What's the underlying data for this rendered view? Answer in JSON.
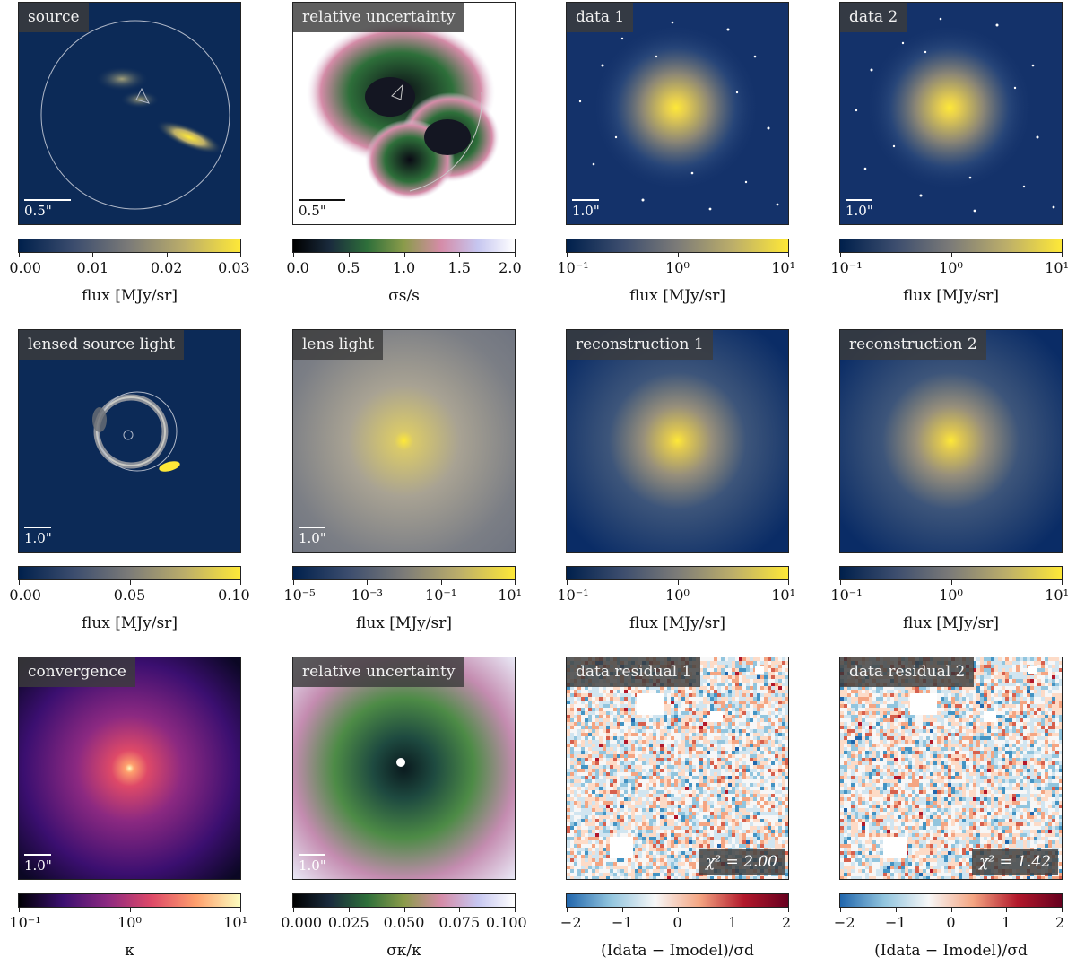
{
  "panels": [
    {
      "id": "source",
      "label": "source",
      "scale": "0.5\"",
      "cbar_ticks": [
        "0.00",
        "0.01",
        "0.02",
        "0.03"
      ],
      "cbar_label": "flux [MJy/sr]",
      "cmap": "cividis"
    },
    {
      "id": "rel-unc-source",
      "label": "relative uncertainty",
      "scale": "0.5\"",
      "cbar_ticks": [
        "0.0",
        "0.5",
        "1.0",
        "1.5",
        "2.0"
      ],
      "cbar_label": "σs/s",
      "cmap": "cubehelix"
    },
    {
      "id": "data-1",
      "label": "data 1",
      "scale": "1.0\"",
      "cbar_ticks": [
        "10⁻¹",
        "10⁰",
        "10¹"
      ],
      "cbar_label": "flux [MJy/sr]",
      "cmap": "cividis"
    },
    {
      "id": "data-2",
      "label": "data 2",
      "scale": "1.0\"",
      "cbar_ticks": [
        "10⁻¹",
        "10⁰",
        "10¹"
      ],
      "cbar_label": "flux [MJy/sr]",
      "cmap": "cividis"
    },
    {
      "id": "lensed-source",
      "label": "lensed source light",
      "scale": "1.0\"",
      "cbar_ticks": [
        "0.00",
        "0.05",
        "0.10"
      ],
      "cbar_label": "flux [MJy/sr]",
      "cmap": "cividis"
    },
    {
      "id": "lens-light",
      "label": "lens light",
      "scale": "1.0\"",
      "cbar_ticks": [
        "10⁻⁵",
        "10⁻³",
        "10⁻¹",
        "10¹"
      ],
      "cbar_label": "flux [MJy/sr]",
      "cmap": "cividis"
    },
    {
      "id": "reconstruction-1",
      "label": "reconstruction 1",
      "scale": "",
      "cbar_ticks": [
        "10⁻¹",
        "10⁰",
        "10¹"
      ],
      "cbar_label": "flux [MJy/sr]",
      "cmap": "cividis"
    },
    {
      "id": "reconstruction-2",
      "label": "reconstruction 2",
      "scale": "",
      "cbar_ticks": [
        "10⁻¹",
        "10⁰",
        "10¹"
      ],
      "cbar_label": "flux [MJy/sr]",
      "cmap": "cividis"
    },
    {
      "id": "convergence",
      "label": "convergence",
      "scale": "1.0\"",
      "cbar_ticks": [
        "10⁻¹",
        "10⁰",
        "10¹"
      ],
      "cbar_label": "κ",
      "cmap": "magma"
    },
    {
      "id": "rel-unc-kappa",
      "label": "relative uncertainty",
      "scale": "1.0\"",
      "cbar_ticks": [
        "0.000",
        "0.025",
        "0.050",
        "0.075",
        "0.100"
      ],
      "cbar_label": "σκ/κ",
      "cmap": "cubehelix"
    },
    {
      "id": "residual-1",
      "label": "data residual 1",
      "scale": "",
      "chi2": "χ² = 2.00",
      "cbar_ticks": [
        "−2",
        "−1",
        "0",
        "1",
        "2"
      ],
      "cbar_label": "(Idata − Imodel)/σd",
      "cmap": "rdbu"
    },
    {
      "id": "residual-2",
      "label": "data residual 2",
      "scale": "",
      "chi2": "χ² = 1.42",
      "cbar_ticks": [
        "−2",
        "−1",
        "0",
        "1",
        "2"
      ],
      "cbar_label": "(Idata − Imodel)/σd",
      "cmap": "rdbu"
    }
  ],
  "colors": {
    "cividis": [
      "#00204c",
      "#3c4d6e",
      "#7c7b78",
      "#bcae6a",
      "#fee838"
    ],
    "cubehelix": [
      "#000000",
      "#1a2b3d",
      "#2e6f3a",
      "#8a9b4a",
      "#d58ca8",
      "#c6c6f0",
      "#ffffff"
    ],
    "magma": [
      "#000004",
      "#3b0f70",
      "#8c2981",
      "#de4968",
      "#fe9f6d",
      "#fcfdbf"
    ],
    "rdbu": [
      "#2166ac",
      "#92c5de",
      "#f7f7f7",
      "#f4a582",
      "#b2182b",
      "#67001f"
    ]
  }
}
